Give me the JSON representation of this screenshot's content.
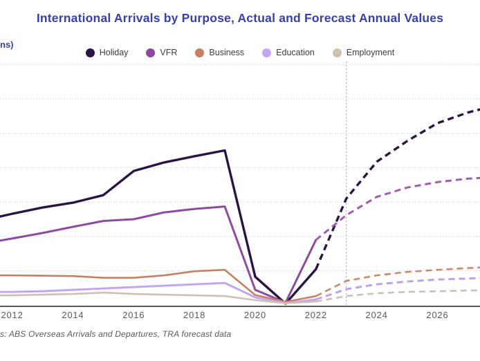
{
  "title": "International Arrivals by Purpose, Actual and Forecast Annual Values",
  "y_axis_label_fragment": "ns)",
  "source_note": "s: ABS Overseas Arrivals and Departures, TRA forecast data",
  "colors": {
    "title": "#3640b2",
    "y_axis_label": "#3640b2",
    "grid": "#d9d9e2",
    "axis_line": "#58595b",
    "forecast_divider": "#9d9d9d",
    "tick_label": "#595959"
  },
  "legend": [
    {
      "name": "Holiday",
      "color": "#2a1345"
    },
    {
      "name": "VFR",
      "color": "#8d4a9e"
    },
    {
      "name": "Business",
      "color": "#c67f60"
    },
    {
      "name": "Education",
      "color": "#c2a7f0"
    },
    {
      "name": "Employment",
      "color": "#cec0b3"
    }
  ],
  "chart_data": {
    "type": "line",
    "title": "International Arrivals by Purpose, Actual and Forecast Annual Values",
    "ylabel": "(millions) — cropped, only 'ns)' visible",
    "xlabel": "",
    "units": "millions of arrivals",
    "x_ticks": [
      2012,
      2014,
      2016,
      2018,
      2020,
      2022,
      2024,
      2026
    ],
    "x_range_visible": [
      2011.6,
      2027.4
    ],
    "ylim": [
      0,
      7
    ],
    "y_gridlines": [
      1,
      2,
      3,
      4,
      5,
      6,
      7
    ],
    "grid": "horizontal-dotted",
    "legend_position": "top-center",
    "forecast_divider_year": 2023,
    "forecast_style": "dashed",
    "series": [
      {
        "name": "Holiday",
        "color": "#2a1345",
        "forecast_color": "#2a1345",
        "width": 3.4,
        "actual": {
          "years": [
            2011.6,
            2012,
            2013,
            2014,
            2015,
            2016,
            2017,
            2018,
            2019,
            2020,
            2021,
            2022
          ],
          "values": [
            2.58,
            2.66,
            2.84,
            2.98,
            3.2,
            3.9,
            4.15,
            4.33,
            4.5,
            0.83,
            0.05,
            1.05
          ]
        },
        "forecast": {
          "years": [
            2022,
            2023,
            2024,
            2025,
            2026,
            2027,
            2027.4
          ],
          "values": [
            1.05,
            3.1,
            4.17,
            4.77,
            5.29,
            5.6,
            5.69
          ]
        }
      },
      {
        "name": "VFR",
        "color": "#8d4a9e",
        "forecast_color": "#a05cb0",
        "width": 3.0,
        "actual": {
          "years": [
            2011.6,
            2012,
            2013,
            2014,
            2015,
            2016,
            2017,
            2018,
            2019,
            2020,
            2021,
            2022
          ],
          "values": [
            1.88,
            1.94,
            2.1,
            2.28,
            2.45,
            2.5,
            2.7,
            2.8,
            2.87,
            0.45,
            0.08,
            1.9
          ]
        },
        "forecast": {
          "years": [
            2022,
            2023,
            2024,
            2025,
            2026,
            2027,
            2027.4
          ],
          "values": [
            1.9,
            2.62,
            3.15,
            3.42,
            3.58,
            3.68,
            3.7
          ]
        }
      },
      {
        "name": "Business",
        "color": "#c67f60",
        "forecast_color": "#c98a6b",
        "width": 2.6,
        "actual": {
          "years": [
            2011.6,
            2012,
            2013,
            2014,
            2015,
            2016,
            2017,
            2018,
            2019,
            2020,
            2021,
            2022
          ],
          "values": [
            0.87,
            0.87,
            0.86,
            0.85,
            0.8,
            0.8,
            0.87,
            0.99,
            1.03,
            0.3,
            0.1,
            0.27
          ]
        },
        "forecast": {
          "years": [
            2022,
            2023,
            2024,
            2025,
            2026,
            2027,
            2027.4
          ],
          "values": [
            0.27,
            0.71,
            0.87,
            0.97,
            1.03,
            1.08,
            1.1
          ]
        }
      },
      {
        "name": "Education",
        "color": "#c2a7f0",
        "forecast_color": "#bba2ec",
        "width": 3.0,
        "actual": {
          "years": [
            2011.6,
            2012,
            2013,
            2014,
            2015,
            2016,
            2017,
            2018,
            2019,
            2020,
            2021,
            2022
          ],
          "values": [
            0.39,
            0.39,
            0.41,
            0.45,
            0.49,
            0.53,
            0.57,
            0.61,
            0.65,
            0.23,
            0.06,
            0.17
          ]
        },
        "forecast": {
          "years": [
            2022,
            2023,
            2024,
            2025,
            2026,
            2027,
            2027.4
          ],
          "values": [
            0.17,
            0.47,
            0.61,
            0.69,
            0.75,
            0.78,
            0.79
          ]
        }
      },
      {
        "name": "Employment",
        "color": "#cec0b3",
        "forecast_color": "#cdc0b2",
        "width": 2.6,
        "actual": {
          "years": [
            2011.6,
            2012,
            2013,
            2014,
            2015,
            2016,
            2017,
            2018,
            2019,
            2020,
            2021,
            2022
          ],
          "values": [
            0.29,
            0.29,
            0.31,
            0.33,
            0.37,
            0.33,
            0.31,
            0.29,
            0.27,
            0.15,
            0.06,
            0.11
          ]
        },
        "forecast": {
          "years": [
            2022,
            2023,
            2024,
            2025,
            2026,
            2027,
            2027.4
          ],
          "values": [
            0.11,
            0.27,
            0.35,
            0.39,
            0.41,
            0.43,
            0.43
          ]
        }
      }
    ]
  }
}
